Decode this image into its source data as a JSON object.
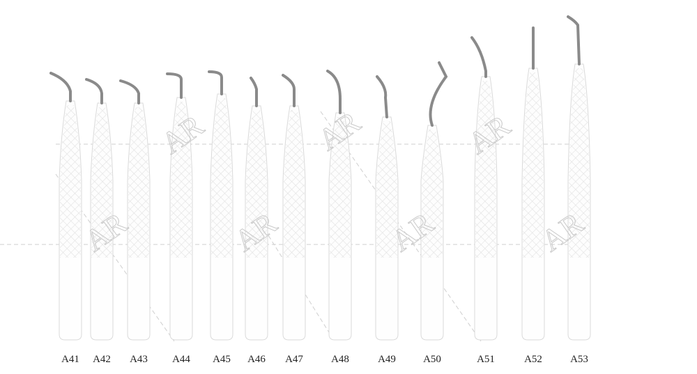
{
  "labels": [
    "A41",
    "A42",
    "A43",
    "A44",
    "A45",
    "A46",
    "A47",
    "A48",
    "A49",
    "A50",
    "A51",
    "A52",
    "A53"
  ],
  "watermark": "AR"
}
